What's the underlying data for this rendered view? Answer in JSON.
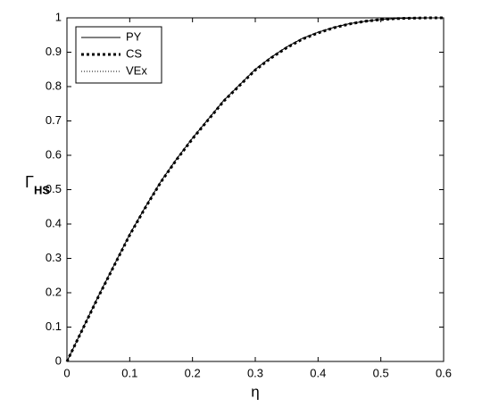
{
  "chart_data": {
    "type": "line",
    "xlabel": "η",
    "ylabel": {
      "symbol": "Γ",
      "subscript": "HS"
    },
    "xlim": [
      0,
      0.6
    ],
    "ylim": [
      0,
      1
    ],
    "xticks": [
      0,
      0.1,
      0.2,
      0.3,
      0.4,
      0.5,
      0.6
    ],
    "yticks": [
      0,
      0.1,
      0.2,
      0.3,
      0.4,
      0.5,
      0.6,
      0.7,
      0.8,
      0.9,
      1
    ],
    "legend": "upper left",
    "x": [
      0,
      0.025,
      0.05,
      0.075,
      0.1,
      0.125,
      0.15,
      0.175,
      0.2,
      0.225,
      0.25,
      0.275,
      0.3,
      0.325,
      0.35,
      0.375,
      0.4,
      0.425,
      0.45,
      0.475,
      0.5,
      0.525,
      0.55,
      0.575,
      0.6
    ],
    "series": [
      {
        "name": "PY",
        "color": "#000000",
        "style": "solid",
        "values": [
          0,
          0.095,
          0.19,
          0.28,
          0.37,
          0.45,
          0.525,
          0.59,
          0.65,
          0.705,
          0.76,
          0.805,
          0.85,
          0.885,
          0.915,
          0.94,
          0.958,
          0.972,
          0.983,
          0.99,
          0.995,
          0.998,
          0.999,
          1,
          1
        ]
      },
      {
        "name": "CS",
        "color": "#000000",
        "style": "thick-dotted",
        "values": [
          0,
          0.094,
          0.188,
          0.278,
          0.368,
          0.448,
          0.523,
          0.588,
          0.648,
          0.703,
          0.758,
          0.803,
          0.848,
          0.883,
          0.913,
          0.938,
          0.956,
          0.971,
          0.982,
          0.99,
          0.995,
          0.998,
          0.999,
          1,
          1
        ]
      },
      {
        "name": "VEx",
        "color": "#000000",
        "style": "dotted",
        "values": [
          0,
          0.096,
          0.191,
          0.281,
          0.371,
          0.451,
          0.526,
          0.591,
          0.651,
          0.706,
          0.761,
          0.806,
          0.851,
          0.886,
          0.916,
          0.941,
          0.959,
          0.973,
          0.984,
          0.991,
          0.996,
          0.998,
          0.999,
          1,
          1
        ]
      }
    ]
  }
}
